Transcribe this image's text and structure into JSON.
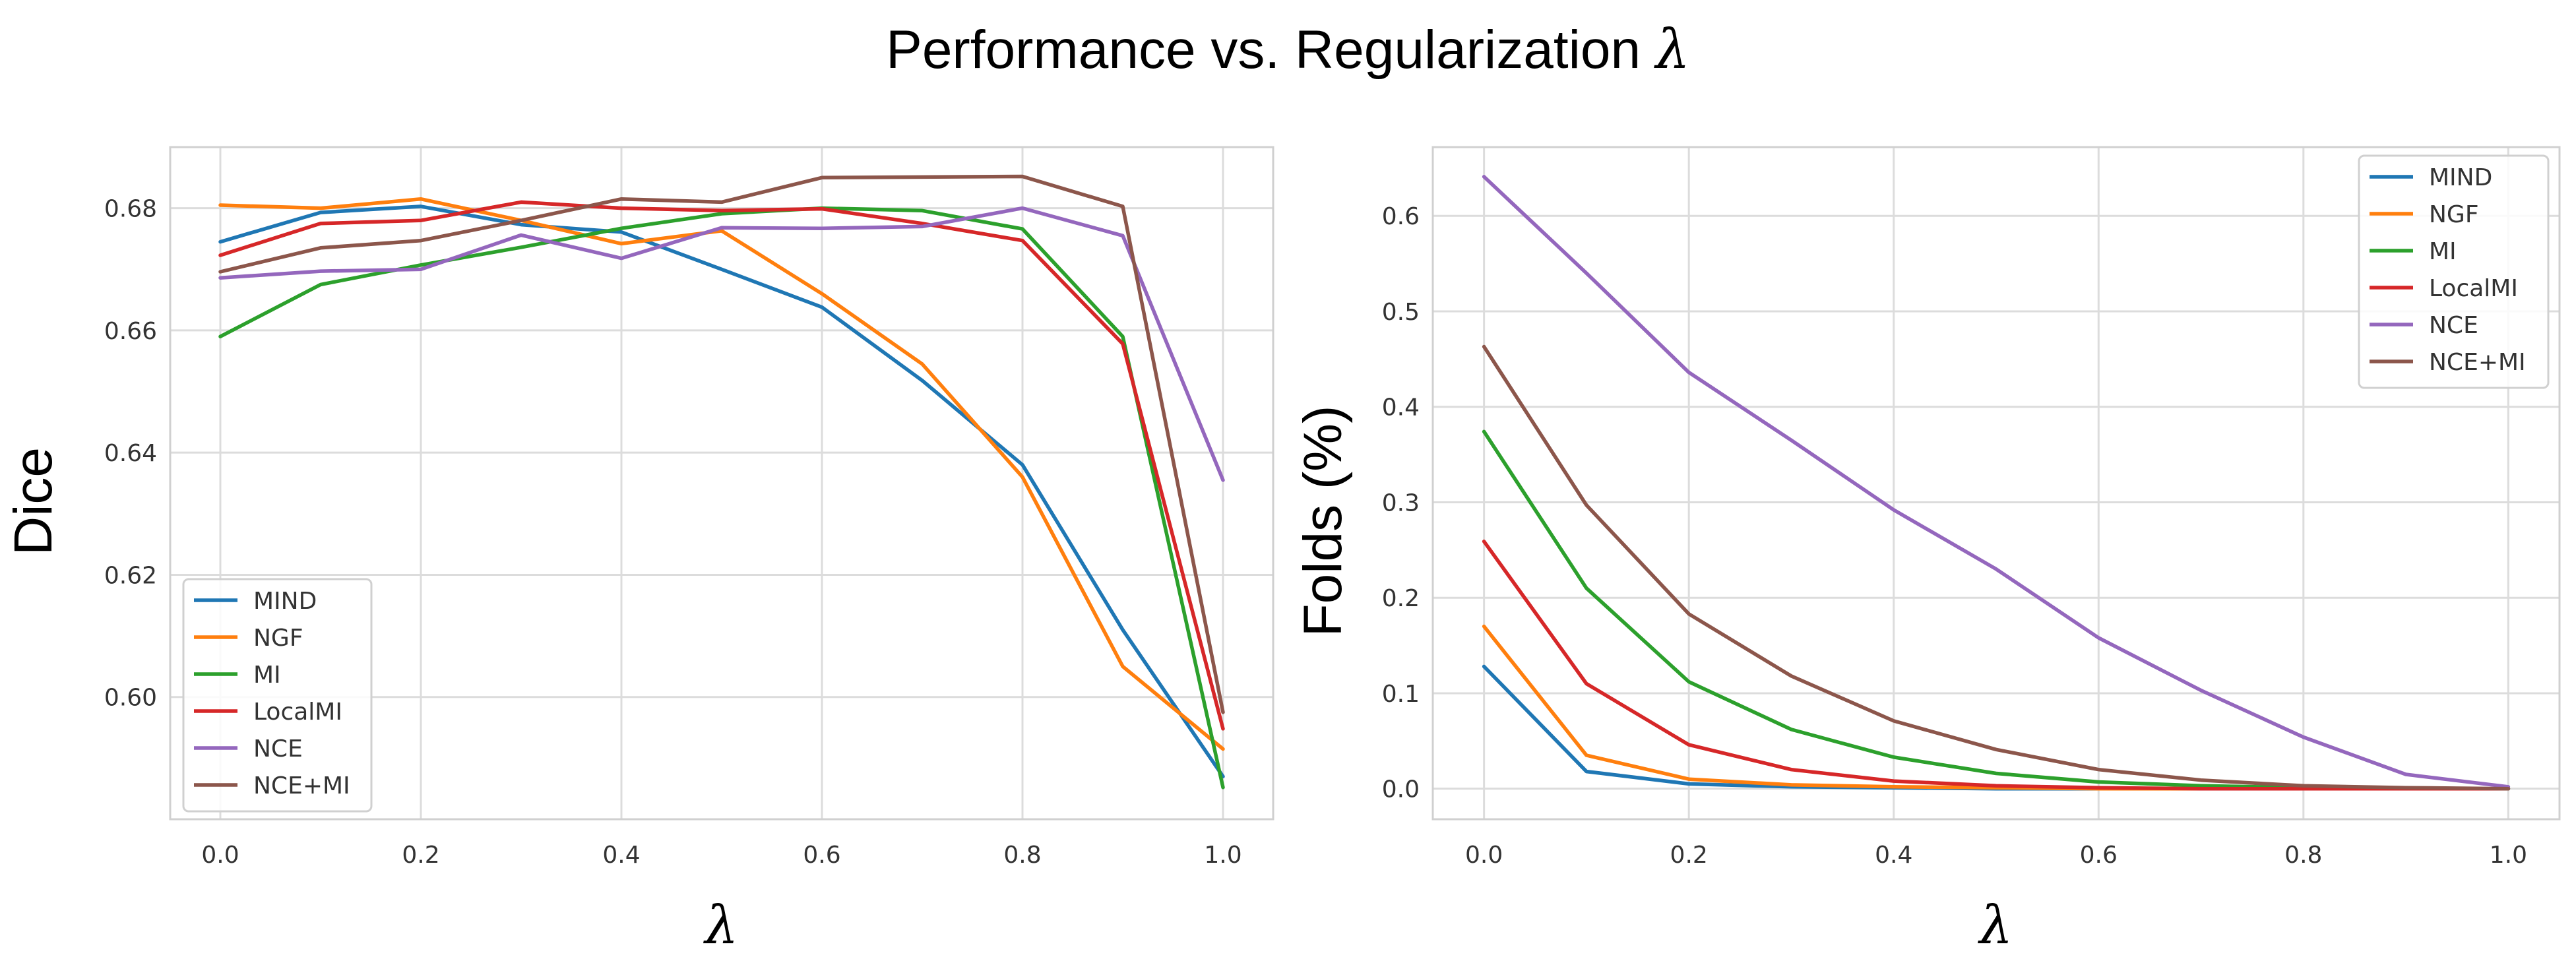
{
  "figure": {
    "title": "Performance vs. Regularization",
    "title_symbol": "λ"
  },
  "chart_data": [
    {
      "type": "line",
      "title": "",
      "xlabel": "λ",
      "ylabel": "Dice",
      "xlim": [
        -0.05,
        1.05
      ],
      "ylim": [
        0.58,
        0.69
      ],
      "xticks": [
        "0.0",
        "0.2",
        "0.4",
        "0.6",
        "0.8",
        "1.0"
      ],
      "xtick_values": [
        0.0,
        0.2,
        0.4,
        0.6,
        0.8,
        1.0
      ],
      "yticks": [
        "0.60",
        "0.62",
        "0.64",
        "0.66",
        "0.68"
      ],
      "ytick_values": [
        0.6,
        0.62,
        0.64,
        0.66,
        0.68
      ],
      "grid": true,
      "legend_position": "bottom-left",
      "x": [
        0.0,
        0.1,
        0.2,
        0.3,
        0.4,
        0.5,
        0.6,
        0.7,
        0.8,
        0.9,
        1.0
      ],
      "series": [
        {
          "name": "MIND",
          "color": "#1f77b4",
          "values": [
            0.6745,
            0.6793,
            0.6803,
            0.6773,
            0.6761,
            0.67,
            0.6638,
            0.6518,
            0.638,
            0.611,
            0.587
          ]
        },
        {
          "name": "NGF",
          "color": "#ff7f0e",
          "values": [
            0.6805,
            0.68,
            0.6815,
            0.678,
            0.6742,
            0.6763,
            0.666,
            0.6545,
            0.636,
            0.605,
            0.5915
          ]
        },
        {
          "name": "MI",
          "color": "#2ca02c",
          "values": [
            0.659,
            0.6675,
            0.6707,
            0.6736,
            0.6767,
            0.6791,
            0.68,
            0.6796,
            0.6766,
            0.659,
            0.5852
          ]
        },
        {
          "name": "LocalMI",
          "color": "#d62728",
          "values": [
            0.6723,
            0.6775,
            0.678,
            0.681,
            0.68,
            0.6796,
            0.6799,
            0.6775,
            0.6747,
            0.6578,
            0.5948
          ]
        },
        {
          "name": "NCE",
          "color": "#9467bd",
          "values": [
            0.6686,
            0.6697,
            0.67,
            0.6756,
            0.6718,
            0.6768,
            0.6767,
            0.677,
            0.68,
            0.6755,
            0.6355
          ]
        },
        {
          "name": "NCE+MI",
          "color": "#8c564b",
          "values": [
            0.6696,
            0.6735,
            0.6747,
            0.678,
            0.6815,
            0.681,
            0.685,
            0.6851,
            0.6852,
            0.6803,
            0.5975
          ]
        }
      ]
    },
    {
      "type": "line",
      "title": "",
      "xlabel": "λ",
      "ylabel": "Folds (%)",
      "xlim": [
        -0.05,
        1.05
      ],
      "ylim": [
        -0.032,
        0.672
      ],
      "xticks": [
        "0.0",
        "0.2",
        "0.4",
        "0.6",
        "0.8",
        "1.0"
      ],
      "xtick_values": [
        0.0,
        0.2,
        0.4,
        0.6,
        0.8,
        1.0
      ],
      "yticks": [
        "0.0",
        "0.1",
        "0.2",
        "0.3",
        "0.4",
        "0.5",
        "0.6"
      ],
      "ytick_values": [
        0.0,
        0.1,
        0.2,
        0.3,
        0.4,
        0.5,
        0.6
      ],
      "grid": true,
      "legend_position": "top-right",
      "x": [
        0.0,
        0.1,
        0.2,
        0.3,
        0.4,
        0.5,
        0.6,
        0.7,
        0.8,
        0.9,
        1.0
      ],
      "series": [
        {
          "name": "MIND",
          "color": "#1f77b4",
          "values": [
            0.128,
            0.018,
            0.005,
            0.002,
            0.001,
            0.0,
            0.0,
            0.0,
            0.0,
            0.0,
            0.0
          ]
        },
        {
          "name": "NGF",
          "color": "#ff7f0e",
          "values": [
            0.17,
            0.035,
            0.01,
            0.004,
            0.002,
            0.001,
            0.0,
            0.0,
            0.0,
            0.0,
            0.0
          ]
        },
        {
          "name": "MI",
          "color": "#2ca02c",
          "values": [
            0.374,
            0.21,
            0.112,
            0.062,
            0.033,
            0.016,
            0.007,
            0.003,
            0.001,
            0.0,
            0.0
          ]
        },
        {
          "name": "LocalMI",
          "color": "#d62728",
          "values": [
            0.259,
            0.11,
            0.046,
            0.02,
            0.008,
            0.003,
            0.001,
            0.0,
            0.0,
            0.0,
            0.0
          ]
        },
        {
          "name": "NCE",
          "color": "#9467bd",
          "values": [
            0.641,
            0.54,
            0.436,
            0.365,
            0.292,
            0.23,
            0.158,
            0.103,
            0.054,
            0.015,
            0.002
          ]
        },
        {
          "name": "NCE+MI",
          "color": "#8c564b",
          "values": [
            0.463,
            0.297,
            0.183,
            0.118,
            0.071,
            0.041,
            0.02,
            0.009,
            0.003,
            0.001,
            0.0
          ]
        }
      ]
    }
  ]
}
